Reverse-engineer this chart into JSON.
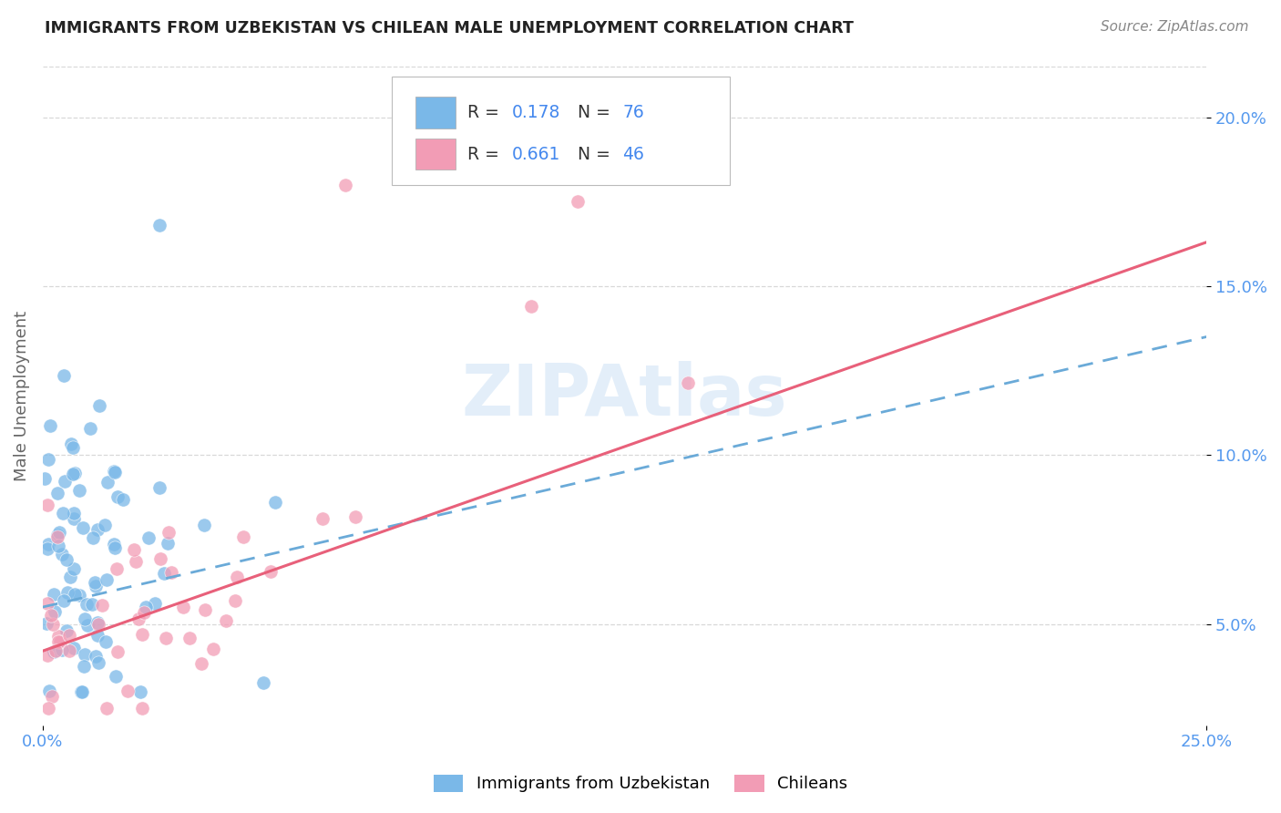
{
  "title": "IMMIGRANTS FROM UZBEKISTAN VS CHILEAN MALE UNEMPLOYMENT CORRELATION CHART",
  "source": "Source: ZipAtlas.com",
  "ylabel_label": "Male Unemployment",
  "xlim": [
    0.0,
    0.25
  ],
  "ylim": [
    0.02,
    0.215
  ],
  "ytick_positions": [
    0.05,
    0.1,
    0.15,
    0.2
  ],
  "ytick_labels": [
    "5.0%",
    "10.0%",
    "15.0%",
    "20.0%"
  ],
  "R1": 0.178,
  "N1": 76,
  "R2": 0.661,
  "N2": 46,
  "blue_color": "#7ab8e8",
  "pink_color": "#f29cb5",
  "trend_blue_color": "#6aaad8",
  "trend_pink_color": "#e8607a",
  "watermark_color": "#c8dff5",
  "tick_color": "#5599ee",
  "ylabel_color": "#666666",
  "title_color": "#222222",
  "source_color": "#888888",
  "grid_color": "#d8d8d8",
  "legend_label1": "Immigrants from Uzbekistan",
  "legend_label2": "Chileans",
  "blue_trend_start_y": 0.055,
  "blue_trend_end_y": 0.135,
  "pink_trend_start_y": 0.042,
  "pink_trend_end_y": 0.163
}
